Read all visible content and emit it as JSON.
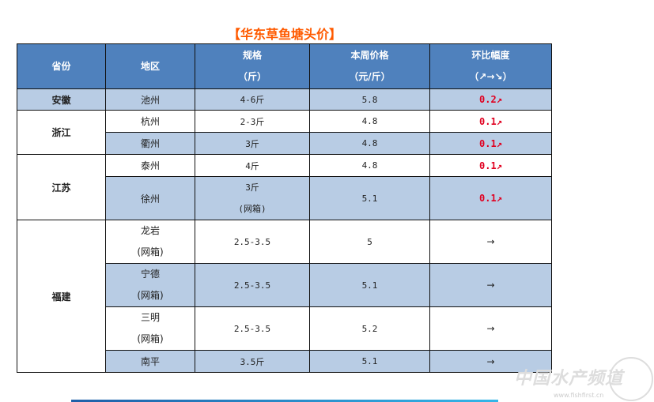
{
  "title": "【华东草鱼塘头价】",
  "headers": {
    "province": "省份",
    "region": "地区",
    "spec_l1": "规格",
    "spec_l2": "（斤）",
    "price_l1": "本周价格",
    "price_l2": "（元/斤）",
    "chg_l1": "环比幅度",
    "chg_l2": "（↗→↘）"
  },
  "rows": [
    {
      "province": "安徽",
      "region": "池州",
      "spec": "4-6斤",
      "price": "5.8",
      "change": "0.2↗"
    },
    {
      "province": "浙江",
      "region": "杭州",
      "spec": "2-3斤",
      "price": "4.8",
      "change": "0.1↗"
    },
    {
      "region": "衢州",
      "spec": "3斤",
      "price": "4.8",
      "change": "0.1↗"
    },
    {
      "province": "江苏",
      "region": "泰州",
      "spec": "4斤",
      "price": "4.8",
      "change": "0.1↗"
    },
    {
      "region": "徐州",
      "spec": "3斤",
      "spec2": "(网箱)",
      "price": "5.1",
      "change": "0.1↗"
    },
    {
      "province": "福建",
      "region": "龙岩",
      "region2": "(网箱)",
      "spec": "2.5-3.5",
      "price": "5",
      "change": "→"
    },
    {
      "region": "宁德",
      "region2": "(网箱)",
      "spec": "2.5-3.5",
      "price": "5.1",
      "change": "→"
    },
    {
      "region": "三明",
      "region2": "(网箱)",
      "spec": "2.5-3.5",
      "price": "5.2",
      "change": "→"
    },
    {
      "region": "南平",
      "spec": "3.5斤",
      "price": "5.1",
      "change": "→"
    }
  ],
  "watermark": {
    "text": "中国水产频道",
    "url": "www.fishfirst.cn"
  },
  "colors": {
    "header": "#4f81bd",
    "row_alt": "#b8cce4",
    "title": "#ff5a00",
    "increase": "#e00020"
  }
}
